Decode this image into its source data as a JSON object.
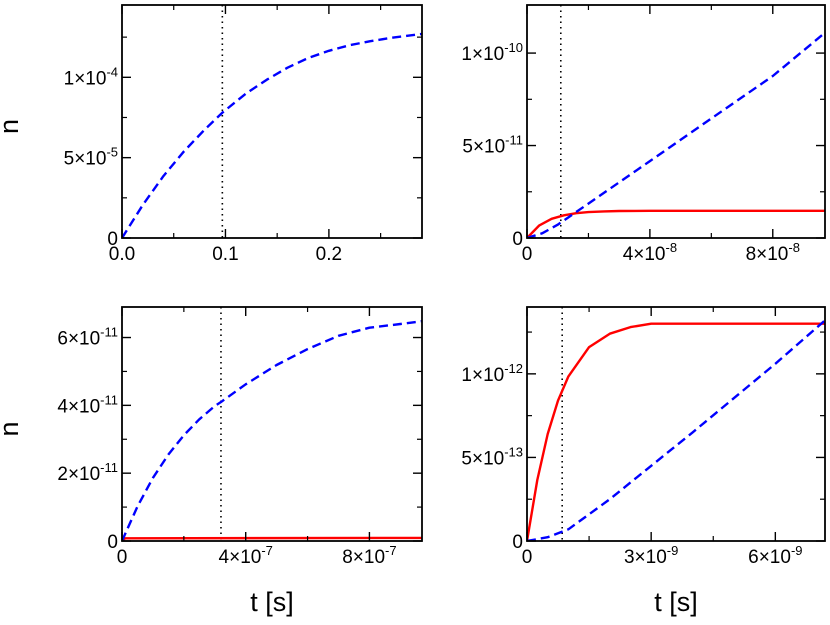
{
  "chart_data": [
    {
      "type": "line",
      "ylabel": "n",
      "xlabel": "",
      "xlim": [
        0,
        0.29
      ],
      "ylim": [
        0,
        0.000145
      ],
      "xticks": [
        {
          "v": 0,
          "m": "0.0",
          "e": ""
        },
        {
          "v": 0.1,
          "m": "0.1",
          "e": ""
        },
        {
          "v": 0.2,
          "m": "0.2",
          "e": ""
        }
      ],
      "yticks": [
        {
          "v": 0,
          "m": "0",
          "e": ""
        },
        {
          "v": 5e-05,
          "m": "5×10",
          "e": "-5"
        },
        {
          "v": 0.0001,
          "m": "1×10",
          "e": "-4"
        }
      ],
      "xminor": [
        0.05,
        0.15,
        0.25
      ],
      "yminor": [
        2.5e-05,
        7.5e-05,
        0.000125
      ],
      "vline": 0.097,
      "series": [
        {
          "color": "#0000ff",
          "dash": "dashed",
          "x": [
            0,
            0.02,
            0.04,
            0.06,
            0.08,
            0.097,
            0.12,
            0.14,
            0.16,
            0.18,
            0.2,
            0.22,
            0.24,
            0.26,
            0.29
          ],
          "y": [
            0,
            2.05e-05,
            3.85e-05,
            5.4e-05,
            6.75e-05,
            7.8e-05,
            9e-05,
            9.85e-05,
            0.000106,
            0.000112,
            0.0001165,
            0.00012,
            0.0001225,
            0.0001245,
            0.000127
          ]
        }
      ]
    },
    {
      "type": "line",
      "ylabel": "",
      "xlabel": "",
      "xlim": [
        0,
        9.7e-08
      ],
      "ylim": [
        0,
        1.26e-10
      ],
      "xticks": [
        {
          "v": 0,
          "m": "0",
          "e": ""
        },
        {
          "v": 4e-08,
          "m": "4×10",
          "e": "-8"
        },
        {
          "v": 8e-08,
          "m": "8×10",
          "e": "-8"
        }
      ],
      "yticks": [
        {
          "v": 0,
          "m": "0",
          "e": ""
        },
        {
          "v": 5e-11,
          "m": "5×10",
          "e": "-11"
        },
        {
          "v": 1e-10,
          "m": "1×10",
          "e": "-10"
        }
      ],
      "xminor": [
        2e-08,
        6e-08
      ],
      "yminor": [
        2.5e-11,
        7.5e-11
      ],
      "vline": 1.1e-08,
      "series": [
        {
          "color": "#ff0000",
          "dash": "solid",
          "x": [
            0,
            4e-09,
            8e-09,
            1.2e-08,
            1.6e-08,
            2e-08,
            2.5e-08,
            3e-08,
            4e-08,
            6e-08,
            8e-08,
            9.7e-08
          ],
          "y": [
            0,
            6.8e-12,
            1.04e-11,
            1.23e-11,
            1.34e-11,
            1.4e-11,
            1.44e-11,
            1.46e-11,
            1.47e-11,
            1.47e-11,
            1.47e-11,
            1.47e-11
          ]
        },
        {
          "color": "#0000ff",
          "dash": "dashed",
          "x": [
            0,
            5e-09,
            1e-08,
            2e-08,
            4e-08,
            6e-08,
            8e-08,
            9.7e-08
          ],
          "y": [
            0,
            2.6e-12,
            7.2e-12,
            1.86e-11,
            4.16e-11,
            6.46e-11,
            8.76e-11,
            1.11e-10
          ]
        }
      ]
    },
    {
      "type": "line",
      "ylabel": "n",
      "xlabel": "t [s]",
      "xlim": [
        0,
        9.7e-07
      ],
      "ylim": [
        0,
        6.9e-11
      ],
      "xticks": [
        {
          "v": 0,
          "m": "0",
          "e": ""
        },
        {
          "v": 4e-07,
          "m": "4×10",
          "e": "-7"
        },
        {
          "v": 8e-07,
          "m": "8×10",
          "e": "-7"
        }
      ],
      "yticks": [
        {
          "v": 0,
          "m": "0",
          "e": ""
        },
        {
          "v": 2e-11,
          "m": "2×10",
          "e": "-11"
        },
        {
          "v": 4e-11,
          "m": "4×10",
          "e": "-11"
        },
        {
          "v": 6e-11,
          "m": "6×10",
          "e": "-11"
        }
      ],
      "xminor": [
        2e-07,
        6e-07
      ],
      "yminor": [
        1e-11,
        3e-11,
        5e-11
      ],
      "vline": 3.2e-07,
      "series": [
        {
          "color": "#ff0000",
          "dash": "solid",
          "x": [
            0,
            1e-08,
            9.7e-07
          ],
          "y": [
            0,
            8e-13,
            9e-13
          ]
        },
        {
          "color": "#0000ff",
          "dash": "dashed",
          "x": [
            0,
            5e-08,
            1e-07,
            1.5e-07,
            2e-07,
            2.5e-07,
            3e-07,
            3.2e-07,
            4e-07,
            5e-07,
            6e-07,
            7e-07,
            8e-07,
            9e-07,
            9.7e-07
          ],
          "y": [
            0,
            1.02e-11,
            1.86e-11,
            2.55e-11,
            3.12e-11,
            3.59e-11,
            3.98e-11,
            4.1e-11,
            4.62e-11,
            5.19e-11,
            5.66e-11,
            6.05e-11,
            6.29e-11,
            6.4e-11,
            6.48e-11
          ]
        }
      ]
    },
    {
      "type": "line",
      "ylabel": "",
      "xlabel": "t [s]",
      "xlim": [
        0,
        7.2e-09
      ],
      "ylim": [
        0,
        1.4e-12
      ],
      "xticks": [
        {
          "v": 0,
          "m": "0",
          "e": ""
        },
        {
          "v": 3e-09,
          "m": "3×10",
          "e": "-9"
        },
        {
          "v": 6e-09,
          "m": "6×10",
          "e": "-9"
        }
      ],
      "yticks": [
        {
          "v": 0,
          "m": "0",
          "e": ""
        },
        {
          "v": 5e-13,
          "m": "5×10",
          "e": "-13"
        },
        {
          "v": 1e-12,
          "m": "1×10",
          "e": "-12"
        }
      ],
      "xminor": [
        1.5e-09,
        4.5e-09
      ],
      "yminor": [
        2.5e-13,
        7.5e-13,
        1.25e-12
      ],
      "vline": 8.5e-10,
      "series": [
        {
          "color": "#ff0000",
          "dash": "solid",
          "x": [
            0,
            2.5e-10,
            5e-10,
            7.5e-10,
            1e-09,
            1.5e-09,
            2e-09,
            2.5e-09,
            3e-09,
            4e-09,
            5e-09,
            6e-09,
            7.2e-09
          ],
          "y": [
            0,
            3.65e-13,
            6.4e-13,
            8.4e-13,
            9.85e-13,
            1.16e-12,
            1.24e-12,
            1.28e-12,
            1.3e-12,
            1.3e-12,
            1.3e-12,
            1.3e-12,
            1.3e-12
          ]
        },
        {
          "color": "#0000ff",
          "dash": "dashed",
          "x": [
            0,
            5e-10,
            1e-09,
            2e-09,
            4e-09,
            6e-09,
            7.2e-09
          ],
          "y": [
            0,
            2.25e-14,
            7e-14,
            2.5e-13,
            6.5e-13,
            1.06e-12,
            1.32e-12
          ]
        }
      ]
    }
  ]
}
